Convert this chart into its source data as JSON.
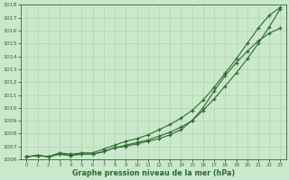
{
  "x": [
    0,
    1,
    2,
    3,
    4,
    5,
    6,
    7,
    8,
    9,
    10,
    11,
    12,
    13,
    14,
    15,
    16,
    17,
    18,
    19,
    20,
    21,
    22,
    23
  ],
  "line1": [
    1006.2,
    1006.3,
    1006.2,
    1006.4,
    1006.3,
    1006.4,
    1006.4,
    1006.6,
    1006.9,
    1007.1,
    1007.3,
    1007.5,
    1007.8,
    1008.1,
    1008.5,
    1009.0,
    1009.8,
    1010.7,
    1011.7,
    1012.7,
    1013.8,
    1015.0,
    1016.3,
    1017.7
  ],
  "line2": [
    1006.2,
    1006.3,
    1006.2,
    1006.5,
    1006.4,
    1006.5,
    1006.5,
    1006.8,
    1007.1,
    1007.4,
    1007.6,
    1007.9,
    1008.3,
    1008.7,
    1009.2,
    1009.8,
    1010.6,
    1011.6,
    1012.7,
    1013.8,
    1015.0,
    1016.2,
    1017.2,
    1017.8
  ],
  "line3": [
    1006.2,
    1006.3,
    1006.2,
    1006.4,
    1006.3,
    1006.4,
    1006.4,
    1006.6,
    1006.9,
    1007.0,
    1007.2,
    1007.4,
    1007.6,
    1007.9,
    1008.3,
    1009.0,
    1010.0,
    1011.3,
    1012.5,
    1013.5,
    1014.4,
    1015.2,
    1015.8,
    1016.2
  ],
  "line_color": "#2d6a2d",
  "bg_color": "#cce8cc",
  "grid_color_major": "#b0d4b0",
  "grid_color_minor": "#c8e4c8",
  "xlabel": "Graphe pression niveau de la mer (hPa)",
  "ylim": [
    1006,
    1018
  ],
  "xlim": [
    -0.5,
    23.5
  ],
  "yticks": [
    1006,
    1007,
    1008,
    1009,
    1010,
    1011,
    1012,
    1013,
    1014,
    1015,
    1016,
    1017,
    1018
  ],
  "xticks": [
    0,
    1,
    2,
    3,
    4,
    5,
    6,
    7,
    8,
    9,
    10,
    11,
    12,
    13,
    14,
    15,
    16,
    17,
    18,
    19,
    20,
    21,
    22,
    23
  ],
  "figwidth": 3.2,
  "figheight": 2.0,
  "dpi": 100
}
